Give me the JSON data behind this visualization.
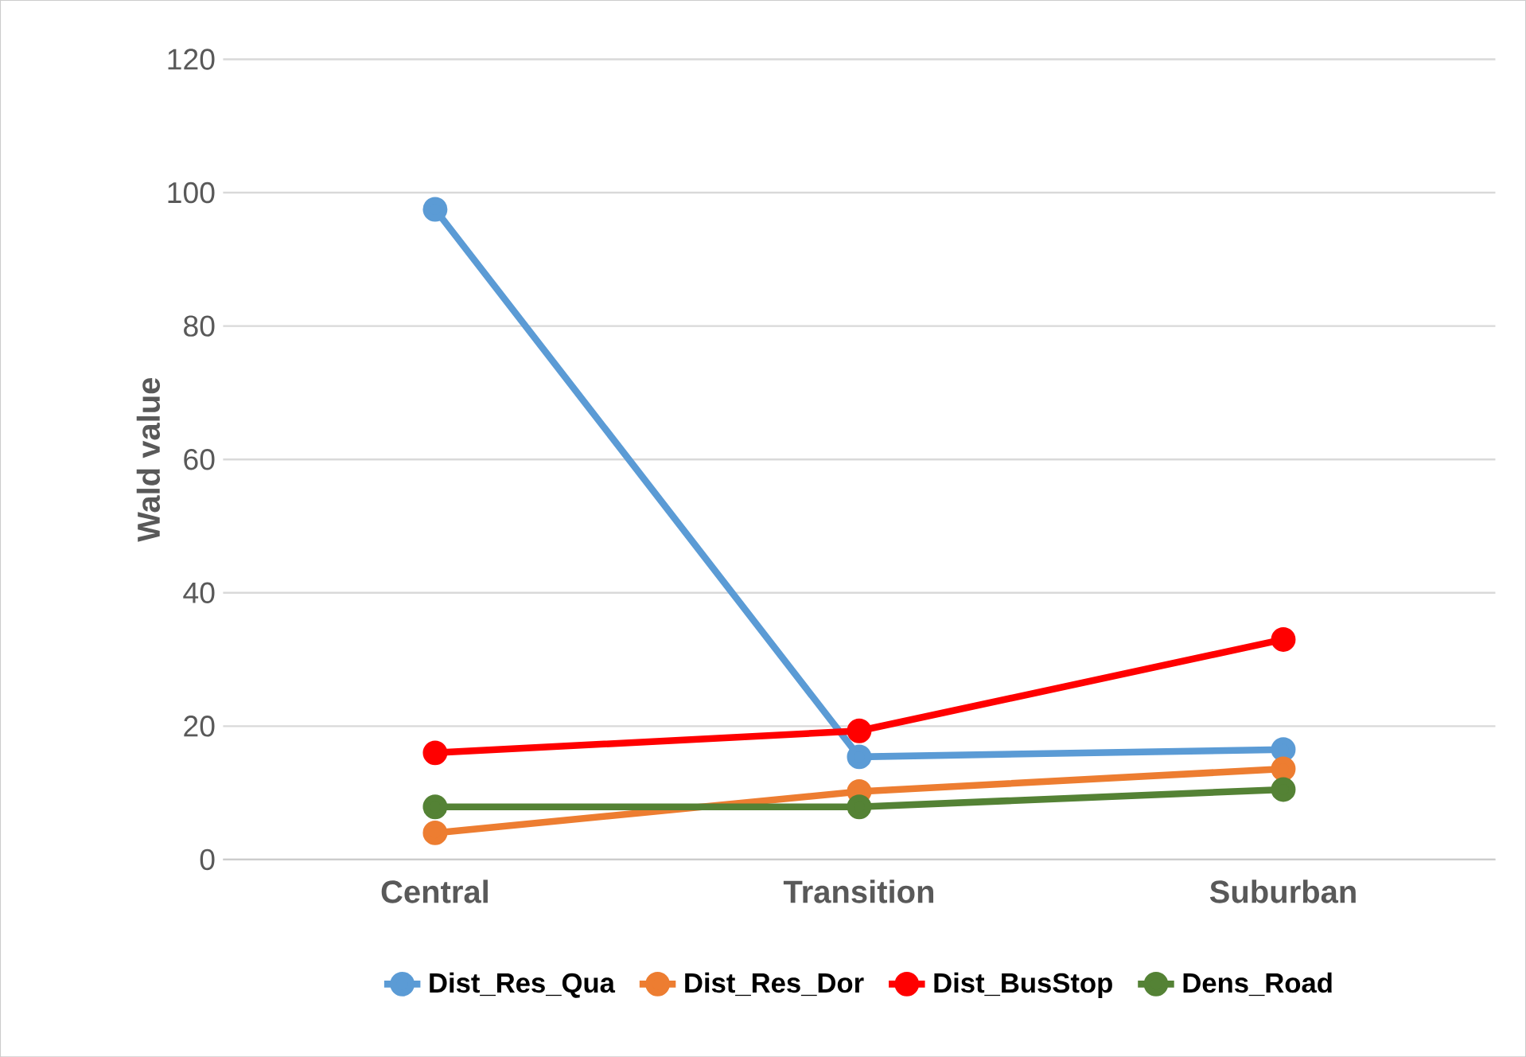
{
  "chart_data": {
    "type": "line",
    "ylabel": "Wald value",
    "categories": [
      "Central",
      "Transition",
      "Suburban"
    ],
    "series": [
      {
        "name": "Dist_Res_Qua",
        "color": "#5b9bd5",
        "values": [
          97.5,
          15.4,
          16.5
        ]
      },
      {
        "name": "Dist_Res_Dor",
        "color": "#ed7d31",
        "values": [
          4.0,
          10.2,
          13.6
        ]
      },
      {
        "name": "Dist_BusStop",
        "color": "#ff0000",
        "values": [
          16.0,
          19.3,
          33.0
        ]
      },
      {
        "name": "Dens_Road",
        "color": "#548235",
        "values": [
          7.9,
          7.9,
          10.5
        ]
      }
    ],
    "ylim": [
      0,
      120
    ],
    "yticks": [
      0,
      20,
      40,
      60,
      80,
      100,
      120
    ],
    "grid": "y",
    "legend": "bottom",
    "marker": "circle",
    "line_style": "solid"
  }
}
